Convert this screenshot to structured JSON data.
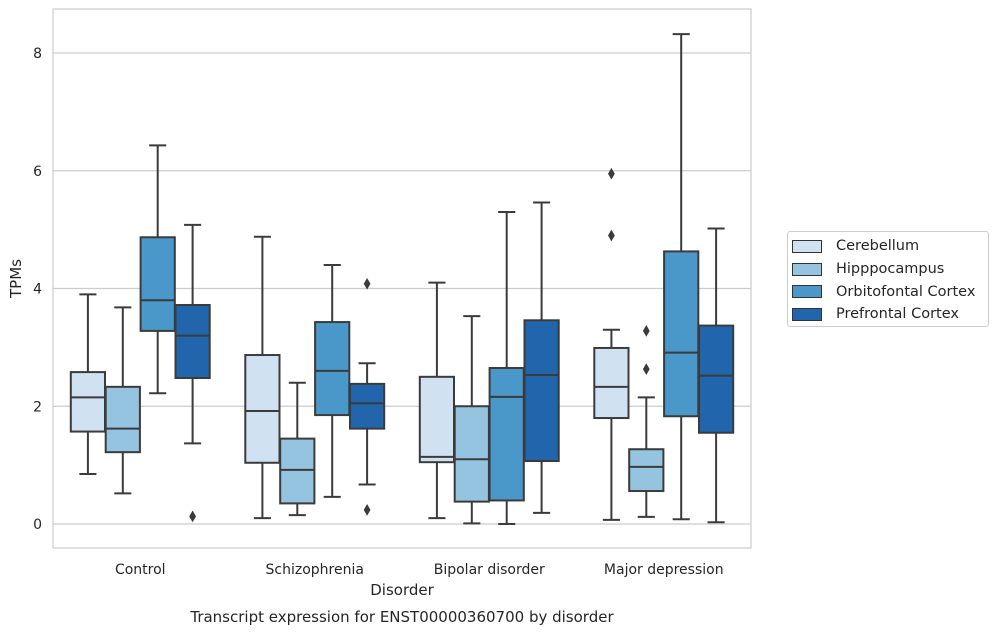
{
  "chart_data": {
    "type": "box",
    "title": "Transcript expression for ENST00000360700 by disorder",
    "xlabel": "Disorder",
    "ylabel": "TPMs",
    "ylim": [
      -0.4,
      8.75
    ],
    "yticks": [
      "0",
      "2",
      "4",
      "6",
      "8"
    ],
    "grid": "horizontal",
    "legend_position": "right",
    "categories": [
      "Control",
      "Schizophrenia",
      "Bipolar disorder",
      "Major depression"
    ],
    "series": [
      {
        "name": "Cerebellum",
        "color": "#d0e1f2",
        "boxes": [
          {
            "min": 0.85,
            "q1": 1.57,
            "median": 2.15,
            "q3": 2.58,
            "max": 3.9,
            "outliers": []
          },
          {
            "min": 0.1,
            "q1": 1.04,
            "median": 1.92,
            "q3": 2.87,
            "max": 4.88,
            "outliers": []
          },
          {
            "min": 0.1,
            "q1": 1.05,
            "median": 1.14,
            "q3": 2.5,
            "max": 4.1,
            "outliers": []
          },
          {
            "min": 0.07,
            "q1": 1.8,
            "median": 2.33,
            "q3": 2.99,
            "max": 3.3,
            "outliers": [
              5.95,
              4.9
            ]
          }
        ]
      },
      {
        "name": "Hipppocampus",
        "color": "#94c4df",
        "boxes": [
          {
            "min": 0.52,
            "q1": 1.22,
            "median": 1.62,
            "q3": 2.33,
            "max": 3.68,
            "outliers": []
          },
          {
            "min": 0.15,
            "q1": 0.35,
            "median": 0.92,
            "q3": 1.45,
            "max": 2.4,
            "outliers": []
          },
          {
            "min": 0.01,
            "q1": 0.38,
            "median": 1.1,
            "q3": 2.0,
            "max": 3.53,
            "outliers": []
          },
          {
            "min": 0.12,
            "q1": 0.56,
            "median": 0.97,
            "q3": 1.27,
            "max": 2.15,
            "outliers": [
              3.28,
              2.63
            ]
          }
        ]
      },
      {
        "name": "Orbitofontal Cortex",
        "color": "#4a98c9",
        "boxes": [
          {
            "min": 2.22,
            "q1": 3.28,
            "median": 3.8,
            "q3": 4.87,
            "max": 6.43,
            "outliers": []
          },
          {
            "min": 0.46,
            "q1": 1.85,
            "median": 2.6,
            "q3": 3.43,
            "max": 4.4,
            "outliers": []
          },
          {
            "min": 0.0,
            "q1": 0.4,
            "median": 2.16,
            "q3": 2.65,
            "max": 5.3,
            "outliers": []
          },
          {
            "min": 0.08,
            "q1": 1.83,
            "median": 2.91,
            "q3": 4.63,
            "max": 8.32,
            "outliers": []
          }
        ]
      },
      {
        "name": "Prefrontal Cortex",
        "color": "#2166ac",
        "boxes": [
          {
            "min": 1.37,
            "q1": 2.48,
            "median": 3.2,
            "q3": 3.72,
            "max": 5.08,
            "outliers": [
              0.13
            ]
          },
          {
            "min": 0.67,
            "q1": 1.62,
            "median": 2.05,
            "q3": 2.38,
            "max": 2.73,
            "outliers": [
              4.08,
              0.24
            ]
          },
          {
            "min": 0.19,
            "q1": 1.07,
            "median": 2.53,
            "q3": 3.46,
            "max": 5.46,
            "outliers": []
          },
          {
            "min": 0.03,
            "q1": 1.55,
            "median": 2.52,
            "q3": 3.37,
            "max": 5.02,
            "outliers": []
          }
        ]
      }
    ]
  }
}
